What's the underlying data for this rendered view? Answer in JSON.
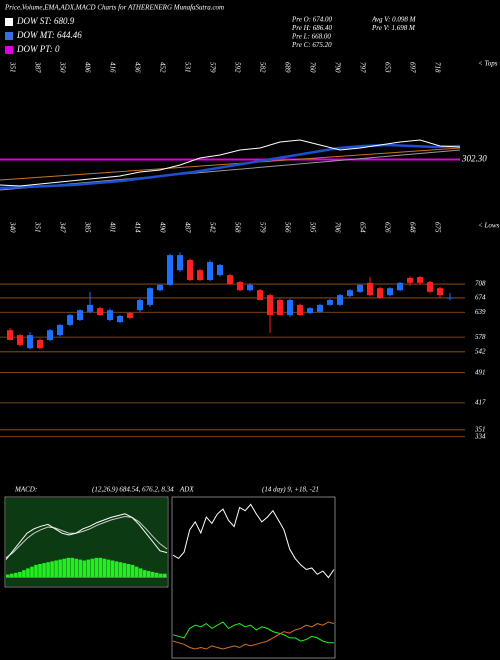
{
  "title": "Price,Volume,EMA,ADX,MACD Charts for ATHERENERG MunafaSutra.com",
  "legend": [
    {
      "label": "DOW ST: 680.9",
      "color": "#ffffff"
    },
    {
      "label": "DOW MT: 644.46",
      "color": "#3a6fe0"
    },
    {
      "label": "DOW PT: 0",
      "color": "#e000e0"
    }
  ],
  "info": [
    "Pre O: 674.00",
    "Pre H: 686.40",
    "Pre L: 668.00",
    "Pre C: 675.20",
    "Avg V: 0.098 M",
    "Pre V: 1.698 M"
  ],
  "chart_data": [
    {
      "type": "line",
      "ylim": [
        100,
        750
      ],
      "tops": [
        351,
        387,
        350,
        406,
        416,
        436,
        452,
        531,
        579,
        592,
        582,
        689,
        760,
        790,
        797,
        653,
        697,
        718
      ],
      "tops_label": "< Tops",
      "ref_line": {
        "value": 302.3,
        "label": "302.30"
      },
      "ref_color": "#e000e0",
      "series": [
        {
          "color": "#999999",
          "values": [
            150,
            175,
            200,
            225,
            250,
            275,
            300,
            325,
            350
          ]
        },
        {
          "color": "#c8742a",
          "values": [
            200,
            220,
            240,
            260,
            280,
            300,
            320,
            340,
            360
          ]
        },
        {
          "color": "#1e4fd0",
          "values": [
            160,
            165,
            170,
            175,
            185,
            195,
            210,
            225,
            240,
            260,
            280,
            300,
            320,
            340,
            360,
            370,
            375,
            370,
            365,
            370
          ]
        },
        {
          "color": "#ffffff",
          "values": [
            175,
            170,
            180,
            190,
            200,
            210,
            220,
            240,
            250,
            275,
            310,
            325,
            350,
            360,
            390,
            400,
            375,
            350,
            360,
            375,
            390,
            400,
            370,
            365
          ]
        }
      ]
    },
    {
      "type": "candlestick",
      "ylim": [
        326,
        816
      ],
      "yticks": [
        334,
        351,
        417,
        491,
        542,
        578,
        639,
        674,
        708
      ],
      "grid_color": "#a0581c",
      "lows": [
        340,
        351,
        347,
        385,
        401,
        414,
        490,
        487,
        542,
        568,
        579,
        566,
        595,
        706,
        654,
        626,
        648,
        675
      ],
      "lows_label": "< Lows",
      "up_color": "#1f6fff",
      "down_color": "#ff2020",
      "candles": [
        [
          595,
          600,
          570,
          571
        ],
        [
          583,
          585,
          555,
          559
        ],
        [
          551,
          590,
          548,
          583
        ],
        [
          571,
          575,
          548,
          551
        ],
        [
          571,
          598,
          568,
          595
        ],
        [
          583,
          610,
          580,
          608
        ],
        [
          608,
          635,
          605,
          632
        ],
        [
          620,
          646,
          618,
          644
        ],
        [
          640,
          689,
          636,
          657
        ],
        [
          649,
          652,
          630,
          632
        ],
        [
          620,
          648,
          617,
          644
        ],
        [
          615,
          632,
          612,
          630
        ],
        [
          637,
          640,
          622,
          625
        ],
        [
          644,
          672,
          640,
          669
        ],
        [
          657,
          700,
          652,
          698
        ],
        [
          693,
          708,
          690,
          706
        ],
        [
          706,
          782,
          703,
          779
        ],
        [
          742,
          785,
          738,
          779
        ],
        [
          767,
          770,
          715,
          718
        ],
        [
          742,
          746,
          715,
          718
        ],
        [
          718,
          766,
          715,
          762
        ],
        [
          730,
          757,
          727,
          755
        ],
        [
          730,
          733,
          706,
          708
        ],
        [
          713,
          716,
          690,
          693
        ],
        [
          693,
          710,
          690,
          706
        ],
        [
          693,
          696,
          668,
          669
        ],
        [
          681,
          684,
          588,
          632
        ],
        [
          669,
          672,
          630,
          632
        ],
        [
          632,
          672,
          628,
          669
        ],
        [
          657,
          660,
          630,
          632
        ],
        [
          637,
          652,
          634,
          649
        ],
        [
          640,
          660,
          637,
          657
        ],
        [
          657,
          672,
          655,
          669
        ],
        [
          657,
          684,
          655,
          681
        ],
        [
          679,
          696,
          676,
          693
        ],
        [
          689,
          708,
          686,
          706
        ],
        [
          711,
          725,
          678,
          681
        ],
        [
          698,
          701,
          672,
          674
        ],
        [
          681,
          700,
          678,
          698
        ],
        [
          693,
          713,
          690,
          711
        ],
        [
          723,
          727,
          704,
          711
        ],
        [
          725,
          728,
          706,
          711
        ],
        [
          713,
          716,
          686,
          689
        ],
        [
          698,
          701,
          674,
          681
        ],
        [
          674,
          686,
          668,
          675
        ]
      ]
    },
    {
      "type": "macd",
      "title": "MACD:",
      "subtitle": "(12,26,9) 684.54, 676.2, 8.34",
      "ylim": [
        -10,
        90
      ],
      "bar_color": "#22ee22",
      "background": "#0c3a12",
      "histogram": [
        3,
        4,
        5,
        6,
        8,
        10,
        12,
        14,
        15,
        16,
        17,
        18,
        19,
        20,
        21,
        22,
        22,
        21,
        20,
        19,
        20,
        21,
        22,
        22,
        21,
        20,
        19,
        18,
        17,
        16,
        15,
        14,
        12,
        10,
        8,
        7,
        6,
        5,
        4,
        4
      ],
      "series": [
        {
          "color": "#cccccc",
          "values": [
            22,
            28,
            36,
            44,
            50,
            54,
            57,
            56,
            53,
            50,
            50,
            52,
            55,
            59,
            62,
            65,
            67,
            69,
            68,
            63,
            55,
            46,
            38,
            32
          ]
        },
        {
          "color": "#ffffff",
          "values": [
            20,
            30,
            40,
            50,
            55,
            58,
            60,
            55,
            50,
            48,
            50,
            55,
            58,
            62,
            65,
            68,
            70,
            72,
            68,
            60,
            50,
            40,
            30,
            28
          ]
        }
      ]
    },
    {
      "type": "line",
      "title": "ADX",
      "subtitle": "(14 day) 9, +18, -21",
      "ylim": [
        0,
        100
      ],
      "series": [
        {
          "color": "#ffffff",
          "values": [
            64,
            62,
            66,
            80,
            85,
            78,
            88,
            84,
            90,
            93,
            86,
            82,
            94,
            92,
            96,
            90,
            85,
            88,
            92,
            86,
            80,
            68,
            62,
            58,
            55,
            56,
            52,
            54,
            50,
            55
          ]
        },
        {
          "color": "#22ee22",
          "values": [
            14,
            13,
            12,
            18,
            20,
            19,
            21,
            18,
            20,
            22,
            18,
            20,
            21,
            19,
            20,
            17,
            19,
            18,
            16,
            15,
            14,
            12,
            12,
            10,
            11,
            13,
            12,
            10,
            9,
            9
          ]
        },
        {
          "color": "#d07020",
          "values": [
            10,
            9,
            8,
            6,
            5,
            6,
            5,
            7,
            6,
            5,
            6,
            7,
            6,
            8,
            7,
            8,
            9,
            10,
            12,
            14,
            16,
            15,
            17,
            18,
            20,
            19,
            21,
            20,
            22,
            21
          ]
        }
      ]
    }
  ]
}
